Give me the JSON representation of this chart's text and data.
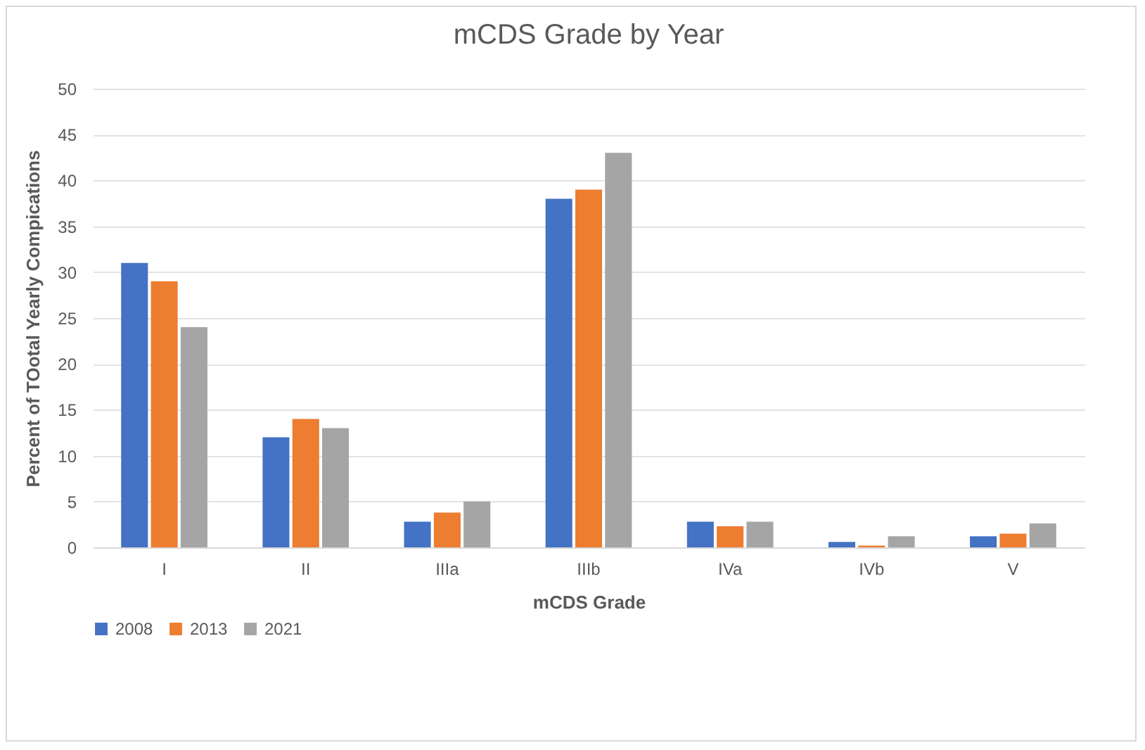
{
  "chart_data": {
    "type": "bar",
    "title": "mCDS Grade by Year",
    "xlabel": "mCDS Grade",
    "ylabel": "Percent of TOotal Yearly Compications",
    "categories": [
      "I",
      "II",
      "IIIa",
      "IIIb",
      "IVa",
      "IVb",
      "V"
    ],
    "series": [
      {
        "name": "2008",
        "color": "#4472c4",
        "values": [
          31,
          12,
          2.8,
          38,
          2.8,
          0.6,
          1.2
        ]
      },
      {
        "name": "2013",
        "color": "#ed7d31",
        "values": [
          29,
          14,
          3.8,
          39,
          2.3,
          0.2,
          1.5
        ]
      },
      {
        "name": "2021",
        "color": "#a5a5a5",
        "values": [
          24,
          13,
          5,
          43,
          2.8,
          1.2,
          2.6
        ]
      }
    ],
    "ylim": [
      0,
      50
    ],
    "yticks": [
      0,
      5,
      10,
      15,
      20,
      25,
      30,
      35,
      40,
      45,
      50
    ],
    "grid": "y",
    "legend": "bottom"
  }
}
